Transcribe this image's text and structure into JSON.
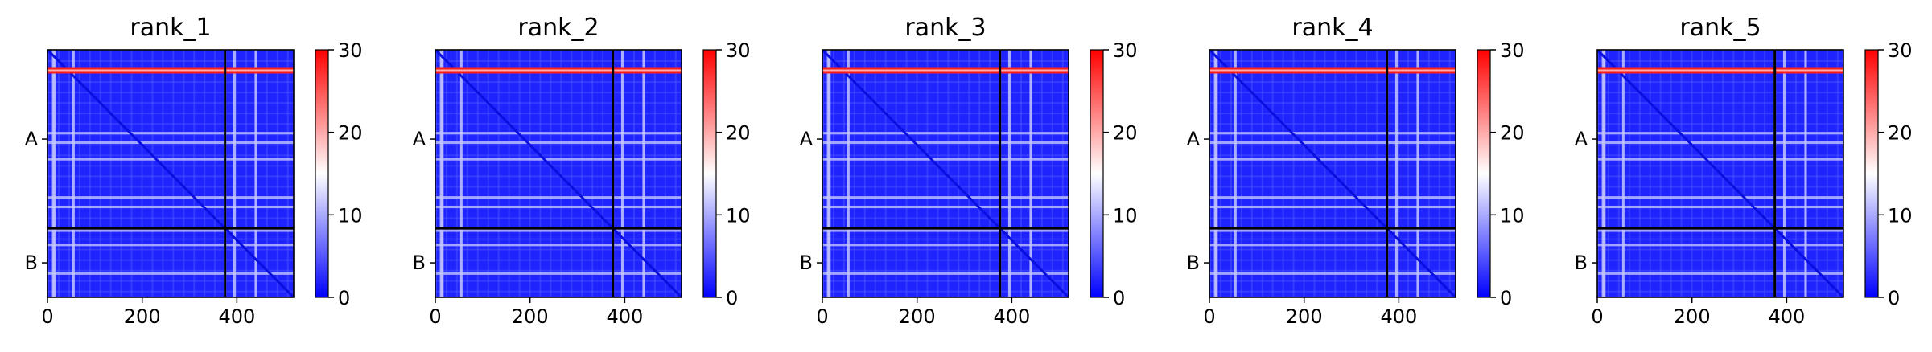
{
  "chart_data": [
    {
      "type": "heatmap",
      "title": "rank_1",
      "xlim": [
        0,
        520
      ],
      "x_ticks": [
        0,
        200,
        400
      ],
      "y_tick_labels": [
        "A",
        "B"
      ],
      "chain_A_length": 375,
      "chain_B_length": 145,
      "colorbar": {
        "min": 0,
        "max": 30,
        "ticks": [
          0,
          10,
          20,
          30
        ],
        "colormap": "bwr"
      },
      "hot_row_position": 43,
      "bright_columns": [
        12,
        15,
        55,
        375,
        395,
        440
      ],
      "bright_rows": [
        175,
        195,
        230,
        310,
        330,
        380,
        410,
        470
      ]
    },
    {
      "type": "heatmap",
      "title": "rank_2",
      "xlim": [
        0,
        520
      ],
      "x_ticks": [
        0,
        200,
        400
      ],
      "y_tick_labels": [
        "A",
        "B"
      ],
      "chain_A_length": 375,
      "chain_B_length": 145,
      "colorbar": {
        "min": 0,
        "max": 30,
        "ticks": [
          0,
          10,
          20,
          30
        ],
        "colormap": "bwr"
      },
      "hot_row_position": 43,
      "bright_columns": [
        12,
        15,
        55,
        375,
        395,
        440
      ],
      "bright_rows": [
        175,
        195,
        230,
        310,
        330,
        380,
        410,
        470
      ]
    },
    {
      "type": "heatmap",
      "title": "rank_3",
      "xlim": [
        0,
        520
      ],
      "x_ticks": [
        0,
        200,
        400
      ],
      "y_tick_labels": [
        "A",
        "B"
      ],
      "chain_A_length": 375,
      "chain_B_length": 145,
      "colorbar": {
        "min": 0,
        "max": 30,
        "ticks": [
          0,
          10,
          20,
          30
        ],
        "colormap": "bwr"
      },
      "hot_row_position": 43,
      "bright_columns": [
        12,
        15,
        55,
        375,
        395,
        440
      ],
      "bright_rows": [
        175,
        195,
        230,
        310,
        330,
        380,
        410,
        470
      ]
    },
    {
      "type": "heatmap",
      "title": "rank_4",
      "xlim": [
        0,
        520
      ],
      "x_ticks": [
        0,
        200,
        400
      ],
      "y_tick_labels": [
        "A",
        "B"
      ],
      "chain_A_length": 375,
      "chain_B_length": 145,
      "colorbar": {
        "min": 0,
        "max": 30,
        "ticks": [
          0,
          10,
          20,
          30
        ],
        "colormap": "bwr"
      },
      "hot_row_position": 43,
      "bright_columns": [
        12,
        15,
        55,
        375,
        395,
        440
      ],
      "bright_rows": [
        175,
        195,
        230,
        310,
        330,
        380,
        410,
        470
      ]
    },
    {
      "type": "heatmap",
      "title": "rank_5",
      "xlim": [
        0,
        520
      ],
      "x_ticks": [
        0,
        200,
        400
      ],
      "y_tick_labels": [
        "A",
        "B"
      ],
      "chain_A_length": 375,
      "chain_B_length": 145,
      "colorbar": {
        "min": 0,
        "max": 30,
        "ticks": [
          0,
          10,
          20,
          30
        ],
        "colormap": "bwr"
      },
      "hot_row_position": 43,
      "bright_columns": [
        12,
        15,
        55,
        375,
        395,
        440
      ],
      "bright_rows": [
        175,
        195,
        230,
        310,
        330,
        380,
        410,
        470
      ]
    }
  ]
}
